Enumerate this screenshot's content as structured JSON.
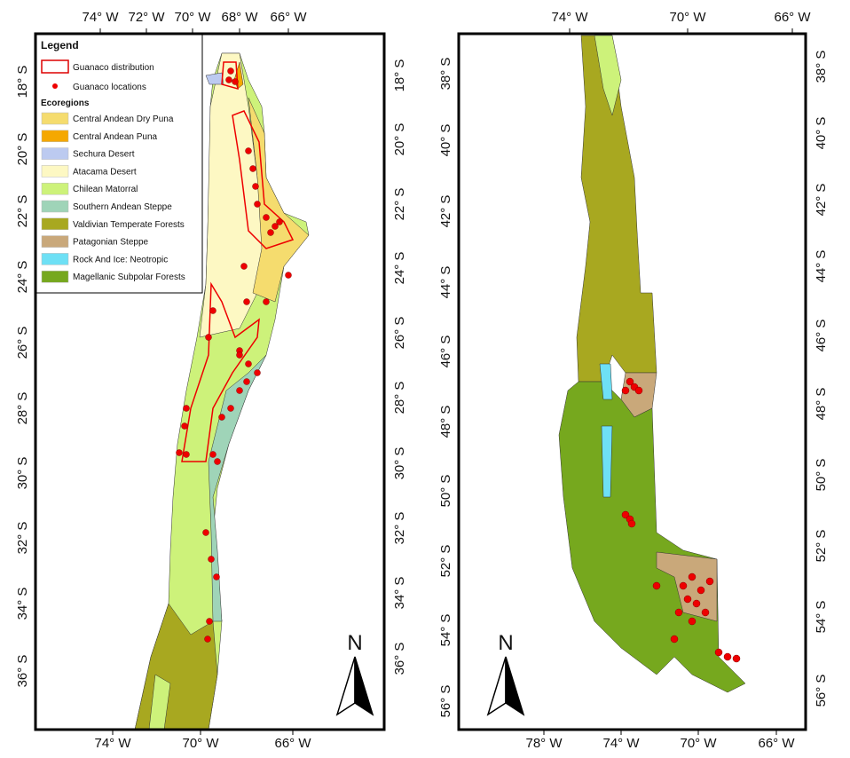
{
  "legend": {
    "title": "Legend",
    "distribution": "Guanaco distribution",
    "locations": "Guanaco locations",
    "ecoregions_title": "Ecoregions",
    "items": [
      {
        "label": "Central Andean Dry Puna",
        "color": "#f5dc6e"
      },
      {
        "label": "Central Andean Puna",
        "color": "#f5a800"
      },
      {
        "label": "Sechura Desert",
        "color": "#bccaf0"
      },
      {
        "label": "Atacama Desert",
        "color": "#fdf8c3"
      },
      {
        "label": "Chilean Matorral",
        "color": "#cdf27a"
      },
      {
        "label": "Southern Andean Steppe",
        "color": "#9fd4b8"
      },
      {
        "label": "Valdivian Temperate Forests",
        "color": "#a8a820"
      },
      {
        "label": "Patagonian Steppe",
        "color": "#c9a87a"
      },
      {
        "label": "Rock And Ice: Neotropic",
        "color": "#6ee0f5"
      },
      {
        "label": "Magellanic Subpolar Forests",
        "color": "#76a81e"
      }
    ]
  },
  "panels": [
    {
      "north": "N",
      "top_ticks": [
        "74° W",
        "72° W",
        "70° W",
        "68° W",
        "66° W"
      ],
      "bottom_ticks": [
        "74° W",
        "70° W",
        "66° W"
      ],
      "left_ticks": [
        "18° S",
        "20° S",
        "22° S",
        "24° S",
        "26° S",
        "28° S",
        "30° S",
        "32° S",
        "34° S",
        "36° S"
      ],
      "right_ticks": [
        "18° S",
        "20° S",
        "22° S",
        "24° S",
        "26° S",
        "28° S",
        "30° S",
        "32° S",
        "34° S",
        "36° S"
      ]
    },
    {
      "north": "N",
      "top_ticks": [
        "74° W",
        "70° W",
        "66° W"
      ],
      "bottom_ticks": [
        "78° W",
        "74° W",
        "70° W",
        "66° W"
      ],
      "left_ticks": [
        "38° S",
        "40° S",
        "42° S",
        "44° S",
        "46° S",
        "48° S",
        "50° S",
        "52° S",
        "54° S",
        "56° S"
      ],
      "right_ticks": [
        "38° S",
        "40° S",
        "42° S",
        "44° S",
        "46° S",
        "48° S",
        "50° S",
        "52° S",
        "54° S",
        "56° S"
      ]
    }
  ]
}
